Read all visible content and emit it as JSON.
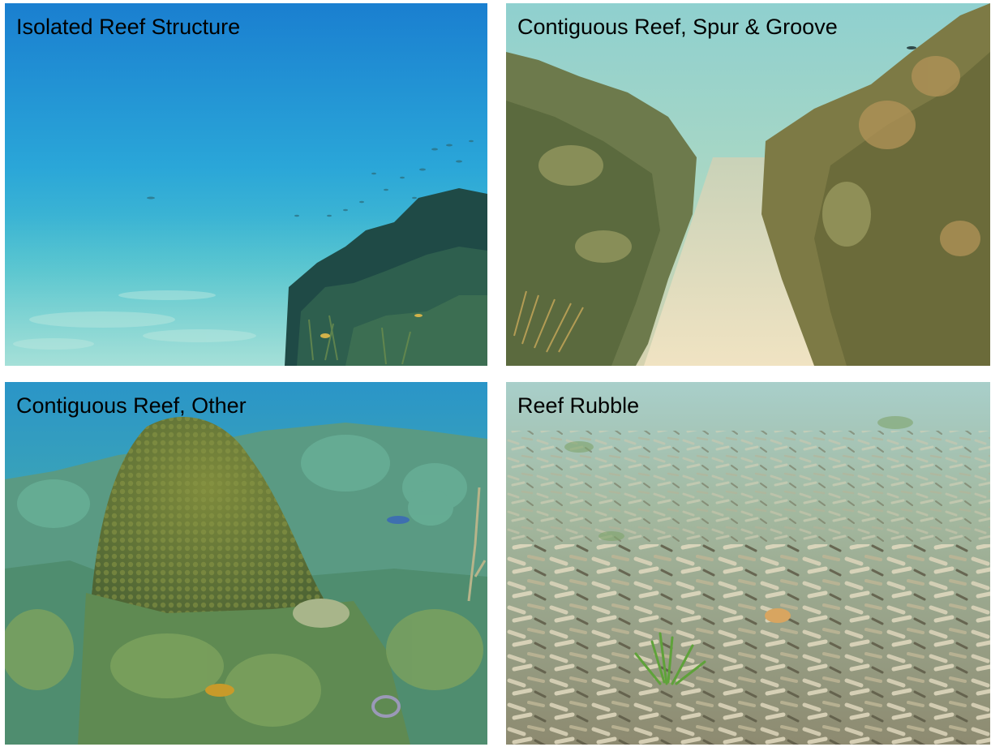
{
  "panels": [
    {
      "caption": "Isolated Reef Structure"
    },
    {
      "caption": "Contiguous Reef, Spur & Groove"
    },
    {
      "caption": "Contiguous Reef, Other"
    },
    {
      "caption": "Reef Rubble"
    }
  ]
}
